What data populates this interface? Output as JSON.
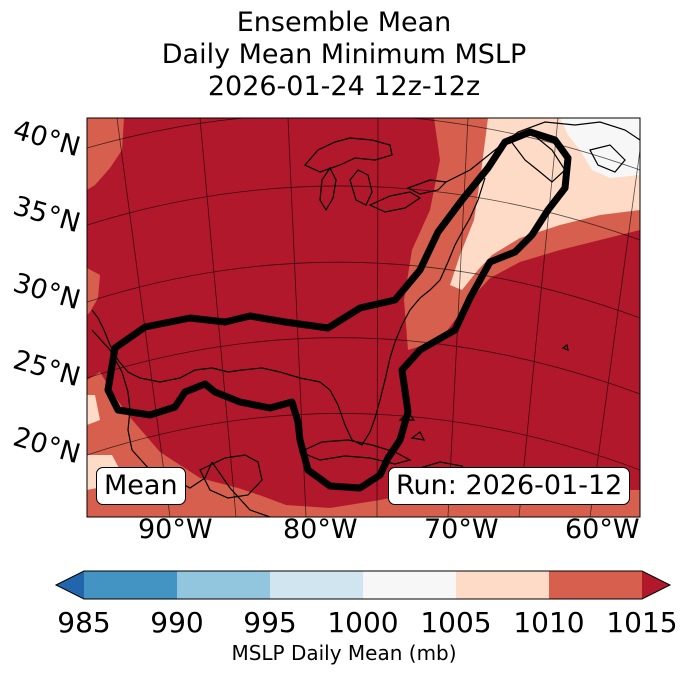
{
  "title": {
    "line1": "Ensemble Mean",
    "line2": "Daily Mean Minimum MSLP",
    "line3": "2026-01-24 12z-12z"
  },
  "map": {
    "lat_labels": [
      "40°N",
      "35°N",
      "30°N",
      "25°N",
      "20°N"
    ],
    "lon_labels": [
      "90°W",
      "80°W",
      "70°W",
      "60°W"
    ],
    "overlay_left": "Mean",
    "overlay_right": "Run: 2026-01-12",
    "contour_color": "#000000"
  },
  "colorbar": {
    "label": "MSLP Daily Mean (mb)",
    "ticks": [
      "985",
      "990",
      "995",
      "1000",
      "1005",
      "1010",
      "1015"
    ],
    "colors": [
      "#2166ac",
      "#4393c3",
      "#92c5de",
      "#d1e5f0",
      "#f7f7f7",
      "#fddbc7",
      "#d6604d",
      "#b2182b"
    ]
  }
}
